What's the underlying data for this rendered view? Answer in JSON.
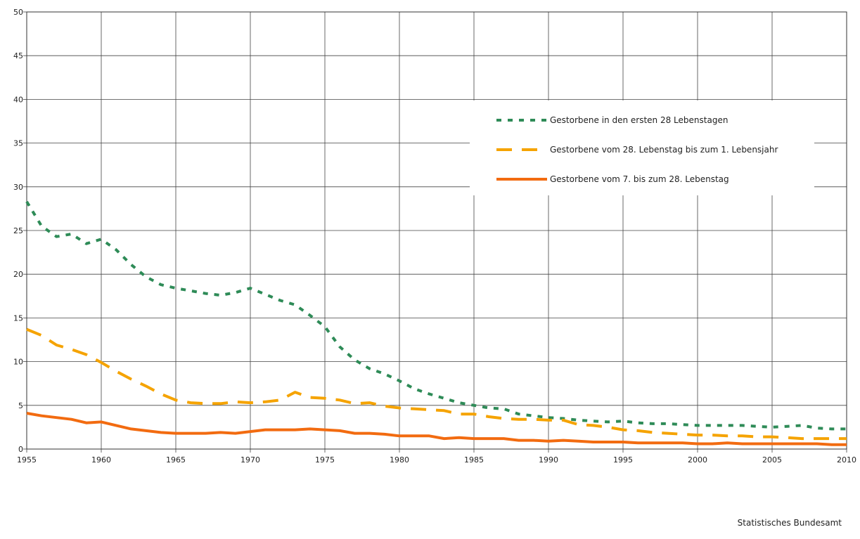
{
  "chart_data": {
    "type": "line",
    "x_range": [
      1955,
      2010
    ],
    "ylim": [
      0,
      50
    ],
    "x_ticks": [
      "1955",
      "1960",
      "1965",
      "1970",
      "1975",
      "1980",
      "1985",
      "1990",
      "1995",
      "2000",
      "2005",
      "2010"
    ],
    "y_ticks": [
      "0",
      "5",
      "10",
      "15",
      "20",
      "25",
      "30",
      "35",
      "40",
      "45",
      "50"
    ],
    "grid": true,
    "legend_position": "upper-right",
    "series": [
      {
        "name": "Gestorbene in den ersten 28 Lebenstagen",
        "color": "#2e8b57",
        "style": "dotted",
        "x": [
          1955,
          1956,
          1957,
          1958,
          1959,
          1960,
          1961,
          1962,
          1963,
          1964,
          1965,
          1966,
          1967,
          1968,
          1969,
          1970,
          1971,
          1972,
          1973,
          1974,
          1975,
          1976,
          1977,
          1978,
          1979,
          1980,
          1981,
          1982,
          1983,
          1984,
          1985,
          1986,
          1987,
          1988,
          1989,
          1990,
          1991,
          1992,
          1993,
          1994,
          1995,
          1996,
          1997,
          1998,
          1999,
          2000,
          2001,
          2002,
          2003,
          2004,
          2005,
          2006,
          2007,
          2008,
          2009,
          2010
        ],
        "values": [
          28.3,
          25.5,
          24.3,
          24.6,
          23.5,
          24.0,
          22.8,
          21.1,
          19.7,
          18.8,
          18.4,
          18.1,
          17.8,
          17.6,
          17.9,
          18.4,
          17.7,
          17.0,
          16.5,
          15.3,
          14.0,
          11.7,
          10.2,
          9.2,
          8.6,
          7.8,
          6.9,
          6.3,
          5.8,
          5.3,
          5.0,
          4.7,
          4.6,
          4.0,
          3.8,
          3.6,
          3.5,
          3.3,
          3.2,
          3.1,
          3.2,
          3.0,
          2.9,
          2.9,
          2.8,
          2.7,
          2.7,
          2.7,
          2.7,
          2.6,
          2.5,
          2.6,
          2.7,
          2.4,
          2.3,
          2.3
        ]
      },
      {
        "name": "Gestorbene vom 28. Lebenstag bis zum 1. Lebensjahr",
        "color": "#f5a300",
        "style": "dashed",
        "x": [
          1955,
          1956,
          1957,
          1958,
          1959,
          1960,
          1961,
          1962,
          1963,
          1964,
          1965,
          1966,
          1967,
          1968,
          1969,
          1970,
          1971,
          1972,
          1973,
          1974,
          1975,
          1976,
          1977,
          1978,
          1979,
          1980,
          1981,
          1982,
          1983,
          1984,
          1985,
          1986,
          1987,
          1988,
          1989,
          1990,
          1991,
          1992,
          1993,
          1994,
          1995,
          1996,
          1997,
          1998,
          1999,
          2000,
          2001,
          2002,
          2003,
          2004,
          2005,
          2006,
          2007,
          2008,
          2009,
          2010
        ],
        "values": [
          13.7,
          13.0,
          11.9,
          11.4,
          10.8,
          9.9,
          8.9,
          8.0,
          7.2,
          6.3,
          5.6,
          5.3,
          5.2,
          5.2,
          5.4,
          5.3,
          5.4,
          5.6,
          6.5,
          5.9,
          5.8,
          5.6,
          5.2,
          5.3,
          4.9,
          4.7,
          4.6,
          4.5,
          4.4,
          4.0,
          4.0,
          3.7,
          3.5,
          3.4,
          3.4,
          3.3,
          3.3,
          2.8,
          2.7,
          2.5,
          2.2,
          2.1,
          1.9,
          1.8,
          1.7,
          1.6,
          1.6,
          1.5,
          1.5,
          1.4,
          1.4,
          1.3,
          1.2,
          1.2,
          1.2,
          1.2
        ]
      },
      {
        "name": "Gestorbene vom 7. bis zum 28. Lebenstag",
        "color": "#f26b10",
        "style": "solid",
        "x": [
          1955,
          1956,
          1957,
          1958,
          1959,
          1960,
          1961,
          1962,
          1963,
          1964,
          1965,
          1966,
          1967,
          1968,
          1969,
          1970,
          1971,
          1972,
          1973,
          1974,
          1975,
          1976,
          1977,
          1978,
          1979,
          1980,
          1981,
          1982,
          1983,
          1984,
          1985,
          1986,
          1987,
          1988,
          1989,
          1990,
          1991,
          1992,
          1993,
          1994,
          1995,
          1996,
          1997,
          1998,
          1999,
          2000,
          2001,
          2002,
          2003,
          2004,
          2005,
          2006,
          2007,
          2008,
          2009,
          2010
        ],
        "values": [
          4.1,
          3.8,
          3.6,
          3.4,
          3.0,
          3.1,
          2.7,
          2.3,
          2.1,
          1.9,
          1.8,
          1.8,
          1.8,
          1.9,
          1.8,
          2.0,
          2.2,
          2.2,
          2.2,
          2.3,
          2.2,
          2.1,
          1.8,
          1.8,
          1.7,
          1.5,
          1.5,
          1.5,
          1.2,
          1.3,
          1.2,
          1.2,
          1.2,
          1.0,
          1.0,
          0.9,
          1.0,
          0.9,
          0.8,
          0.8,
          0.8,
          0.7,
          0.7,
          0.7,
          0.7,
          0.6,
          0.6,
          0.7,
          0.6,
          0.6,
          0.6,
          0.6,
          0.6,
          0.6,
          0.5,
          0.5
        ]
      }
    ]
  },
  "footer": {
    "source": "Statistisches Bundesamt"
  }
}
